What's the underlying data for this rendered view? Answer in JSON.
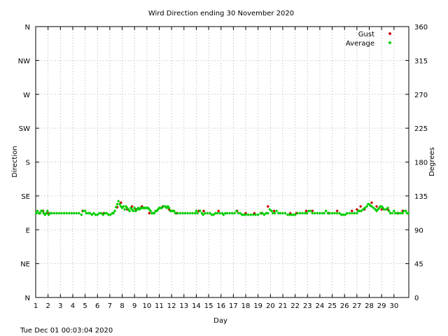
{
  "chart_data": {
    "type": "scatter",
    "title": "Wird Direction ending 30 November 2020",
    "xlabel": "Day",
    "ylabel_left": "Direction",
    "ylabel_right": "Degrees",
    "xlim": [
      1,
      31.2
    ],
    "ylim": [
      0,
      360
    ],
    "x_ticks": [
      1,
      2,
      3,
      4,
      5,
      6,
      7,
      8,
      9,
      10,
      11,
      12,
      13,
      14,
      15,
      16,
      17,
      18,
      19,
      20,
      21,
      22,
      23,
      24,
      25,
      26,
      27,
      28,
      29,
      30
    ],
    "y_ticks_left": [
      {
        "value": 0,
        "label": "N"
      },
      {
        "value": 45,
        "label": "NE"
      },
      {
        "value": 90,
        "label": "E"
      },
      {
        "value": 135,
        "label": "SE"
      },
      {
        "value": 180,
        "label": "S"
      },
      {
        "value": 225,
        "label": "SW"
      },
      {
        "value": 270,
        "label": "W"
      },
      {
        "value": 315,
        "label": "NW"
      },
      {
        "value": 360,
        "label": "N"
      }
    ],
    "y_ticks_right": [
      0,
      45,
      90,
      135,
      180,
      225,
      270,
      315,
      360
    ],
    "grid": true,
    "legend_position": "top-right",
    "series": [
      {
        "name": "Gust",
        "color": "#cc0000",
        "points": [
          [
            1.3,
            112
          ],
          [
            1.6,
            115
          ],
          [
            2.0,
            112
          ],
          [
            4.8,
            115
          ],
          [
            6.5,
            112
          ],
          [
            7.6,
            120
          ],
          [
            7.9,
            126
          ],
          [
            8.4,
            117
          ],
          [
            8.8,
            121
          ],
          [
            9.1,
            117
          ],
          [
            9.6,
            121
          ],
          [
            10.2,
            112
          ],
          [
            11.3,
            121
          ],
          [
            11.8,
            117
          ],
          [
            12.4,
            112
          ],
          [
            14.2,
            115
          ],
          [
            14.6,
            115
          ],
          [
            15.8,
            115
          ],
          [
            17.3,
            115
          ],
          [
            18.0,
            112
          ],
          [
            18.7,
            112
          ],
          [
            19.3,
            112
          ],
          [
            19.8,
            121
          ],
          [
            20.3,
            115
          ],
          [
            21.6,
            112
          ],
          [
            22.1,
            112
          ],
          [
            22.9,
            115
          ],
          [
            23.4,
            115
          ],
          [
            24.7,
            112
          ],
          [
            25.4,
            115
          ],
          [
            26.6,
            115
          ],
          [
            27.0,
            117
          ],
          [
            27.3,
            121
          ],
          [
            27.6,
            117
          ],
          [
            28.2,
            126
          ],
          [
            28.6,
            121
          ],
          [
            29.0,
            117
          ],
          [
            29.5,
            117
          ],
          [
            30.3,
            112
          ],
          [
            30.7,
            115
          ]
        ]
      },
      {
        "name": "Average",
        "color": "#00cc00",
        "points": [
          [
            1.05,
            112
          ],
          [
            1.15,
            115
          ],
          [
            1.25,
            112
          ],
          [
            1.35,
            112
          ],
          [
            1.45,
            115
          ],
          [
            1.55,
            115
          ],
          [
            1.65,
            112
          ],
          [
            1.75,
            110
          ],
          [
            1.85,
            112
          ],
          [
            1.95,
            115
          ],
          [
            2.05,
            110
          ],
          [
            2.15,
            112
          ],
          [
            2.3,
            112
          ],
          [
            2.5,
            112
          ],
          [
            2.7,
            112
          ],
          [
            2.9,
            112
          ],
          [
            3.1,
            112
          ],
          [
            3.3,
            112
          ],
          [
            3.5,
            112
          ],
          [
            3.7,
            112
          ],
          [
            3.9,
            112
          ],
          [
            4.1,
            112
          ],
          [
            4.3,
            112
          ],
          [
            4.5,
            112
          ],
          [
            4.7,
            110
          ],
          [
            4.85,
            115
          ],
          [
            5.0,
            115
          ],
          [
            5.1,
            112
          ],
          [
            5.25,
            112
          ],
          [
            5.4,
            112
          ],
          [
            5.55,
            110
          ],
          [
            5.7,
            112
          ],
          [
            5.85,
            110
          ],
          [
            6.0,
            110
          ],
          [
            6.15,
            112
          ],
          [
            6.3,
            112
          ],
          [
            6.45,
            110
          ],
          [
            6.6,
            112
          ],
          [
            6.75,
            112
          ],
          [
            6.9,
            110
          ],
          [
            7.05,
            110
          ],
          [
            7.2,
            112
          ],
          [
            7.3,
            112
          ],
          [
            7.4,
            115
          ],
          [
            7.5,
            120
          ],
          [
            7.6,
            124
          ],
          [
            7.7,
            128
          ],
          [
            7.8,
            124
          ],
          [
            7.9,
            121
          ],
          [
            8.0,
            119
          ],
          [
            8.1,
            121
          ],
          [
            8.2,
            117
          ],
          [
            8.3,
            121
          ],
          [
            8.4,
            119
          ],
          [
            8.5,
            117
          ],
          [
            8.6,
            115
          ],
          [
            8.7,
            119
          ],
          [
            8.8,
            117
          ],
          [
            8.9,
            115
          ],
          [
            9.0,
            119
          ],
          [
            9.1,
            115
          ],
          [
            9.2,
            117
          ],
          [
            9.3,
            119
          ],
          [
            9.4,
            117
          ],
          [
            9.5,
            119
          ],
          [
            9.6,
            119
          ],
          [
            9.7,
            119
          ],
          [
            9.8,
            119
          ],
          [
            9.9,
            119
          ],
          [
            10.0,
            119
          ],
          [
            10.1,
            119
          ],
          [
            10.2,
            117
          ],
          [
            10.3,
            115
          ],
          [
            10.4,
            112
          ],
          [
            10.5,
            112
          ],
          [
            10.6,
            112
          ],
          [
            10.7,
            115
          ],
          [
            10.8,
            115
          ],
          [
            10.9,
            117
          ],
          [
            11.0,
            119
          ],
          [
            11.1,
            119
          ],
          [
            11.2,
            119
          ],
          [
            11.35,
            121
          ],
          [
            11.5,
            121
          ],
          [
            11.6,
            119
          ],
          [
            11.7,
            121
          ],
          [
            11.8,
            119
          ],
          [
            11.9,
            115
          ],
          [
            12.0,
            115
          ],
          [
            12.1,
            115
          ],
          [
            12.2,
            115
          ],
          [
            12.3,
            112
          ],
          [
            12.5,
            112
          ],
          [
            12.7,
            112
          ],
          [
            12.9,
            112
          ],
          [
            13.1,
            112
          ],
          [
            13.3,
            112
          ],
          [
            13.5,
            112
          ],
          [
            13.7,
            112
          ],
          [
            13.9,
            112
          ],
          [
            14.0,
            115
          ],
          [
            14.1,
            112
          ],
          [
            14.3,
            115
          ],
          [
            14.45,
            112
          ],
          [
            14.55,
            110
          ],
          [
            14.7,
            112
          ],
          [
            14.9,
            112
          ],
          [
            15.1,
            112
          ],
          [
            15.25,
            110
          ],
          [
            15.4,
            110
          ],
          [
            15.55,
            112
          ],
          [
            15.7,
            112
          ],
          [
            15.9,
            112
          ],
          [
            16.1,
            112
          ],
          [
            16.2,
            110
          ],
          [
            16.35,
            112
          ],
          [
            16.5,
            112
          ],
          [
            16.7,
            112
          ],
          [
            16.9,
            112
          ],
          [
            17.1,
            112
          ],
          [
            17.25,
            115
          ],
          [
            17.4,
            112
          ],
          [
            17.55,
            112
          ],
          [
            17.7,
            110
          ],
          [
            17.85,
            110
          ],
          [
            18.0,
            110
          ],
          [
            18.2,
            110
          ],
          [
            18.4,
            110
          ],
          [
            18.6,
            110
          ],
          [
            18.8,
            110
          ],
          [
            19.0,
            110
          ],
          [
            19.2,
            112
          ],
          [
            19.35,
            112
          ],
          [
            19.5,
            110
          ],
          [
            19.65,
            112
          ],
          [
            19.8,
            112
          ],
          [
            19.95,
            117
          ],
          [
            20.1,
            115
          ],
          [
            20.2,
            112
          ],
          [
            20.35,
            112
          ],
          [
            20.5,
            115
          ],
          [
            20.65,
            112
          ],
          [
            20.8,
            112
          ],
          [
            21.0,
            112
          ],
          [
            21.2,
            112
          ],
          [
            21.4,
            110
          ],
          [
            21.55,
            110
          ],
          [
            21.7,
            110
          ],
          [
            21.85,
            110
          ],
          [
            22.0,
            110
          ],
          [
            22.2,
            112
          ],
          [
            22.4,
            112
          ],
          [
            22.6,
            112
          ],
          [
            22.8,
            112
          ],
          [
            22.95,
            112
          ],
          [
            23.1,
            115
          ],
          [
            23.25,
            115
          ],
          [
            23.4,
            112
          ],
          [
            23.6,
            112
          ],
          [
            23.8,
            112
          ],
          [
            24.0,
            112
          ],
          [
            24.2,
            112
          ],
          [
            24.35,
            112
          ],
          [
            24.5,
            115
          ],
          [
            24.65,
            112
          ],
          [
            24.8,
            112
          ],
          [
            25.0,
            112
          ],
          [
            25.2,
            112
          ],
          [
            25.4,
            112
          ],
          [
            25.6,
            112
          ],
          [
            25.75,
            110
          ],
          [
            25.9,
            110
          ],
          [
            26.05,
            110
          ],
          [
            26.2,
            112
          ],
          [
            26.4,
            112
          ],
          [
            26.6,
            112
          ],
          [
            26.8,
            112
          ],
          [
            27.0,
            112
          ],
          [
            27.1,
            115
          ],
          [
            27.2,
            115
          ],
          [
            27.35,
            115
          ],
          [
            27.5,
            117
          ],
          [
            27.65,
            119
          ],
          [
            27.8,
            121
          ],
          [
            27.9,
            124
          ],
          [
            28.0,
            124
          ],
          [
            28.1,
            122
          ],
          [
            28.2,
            121
          ],
          [
            28.35,
            119
          ],
          [
            28.5,
            117
          ],
          [
            28.6,
            115
          ],
          [
            28.7,
            117
          ],
          [
            28.8,
            119
          ],
          [
            28.9,
            121
          ],
          [
            29.0,
            121
          ],
          [
            29.1,
            119
          ],
          [
            29.2,
            117
          ],
          [
            29.35,
            117
          ],
          [
            29.5,
            119
          ],
          [
            29.6,
            115
          ],
          [
            29.7,
            112
          ],
          [
            29.85,
            112
          ],
          [
            30.0,
            115
          ],
          [
            30.1,
            112
          ],
          [
            30.25,
            112
          ],
          [
            30.4,
            112
          ],
          [
            30.55,
            112
          ],
          [
            30.7,
            112
          ],
          [
            30.8,
            115
          ],
          [
            30.95,
            115
          ],
          [
            31.05,
            112
          ],
          [
            31.15,
            112
          ]
        ]
      }
    ]
  },
  "timestamp": "Tue Dec 01 00:03:04 2020"
}
